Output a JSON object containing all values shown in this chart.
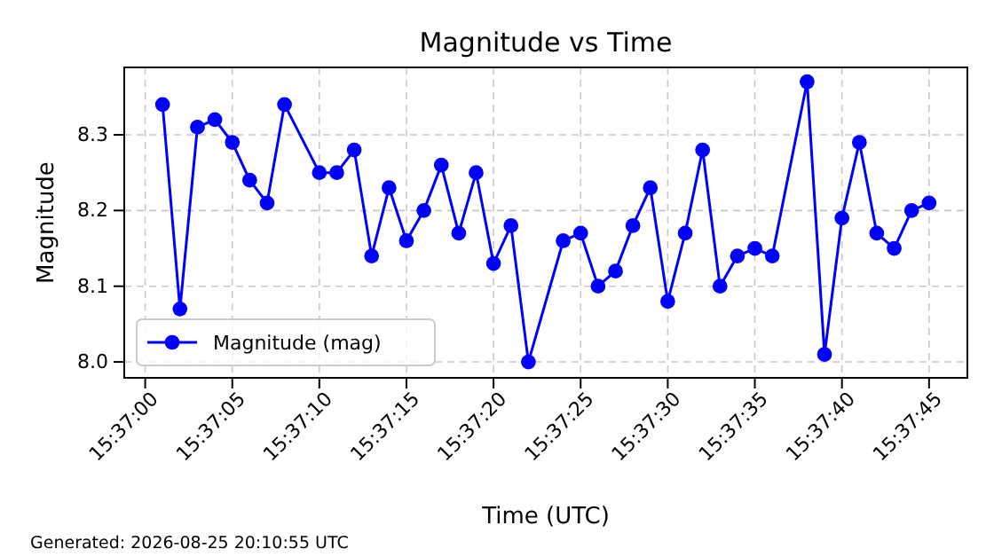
{
  "chart_data": {
    "type": "line",
    "title": "Magnitude vs Time",
    "xlabel": "Time (UTC)",
    "ylabel": "Magnitude",
    "x": [
      15.616944,
      15.617222,
      15.6175,
      15.617778,
      15.618056,
      15.618333,
      15.618611,
      15.618889,
      15.619444,
      15.619722,
      15.62,
      15.620278,
      15.620556,
      15.620833,
      15.621111,
      15.621389,
      15.621667,
      15.621944,
      15.622222,
      15.6225,
      15.622778,
      15.623333,
      15.623611,
      15.623889,
      15.624167,
      15.624444,
      15.624722,
      15.625,
      15.625278,
      15.625556,
      15.625833,
      15.626111,
      15.626389,
      15.626667,
      15.627222,
      15.6275,
      15.627778,
      15.628056,
      15.628333,
      15.628611,
      15.628889,
      15.629167
    ],
    "series": [
      {
        "name": "Magnitude (mag)",
        "color": "#0000ff",
        "values": [
          8.34,
          8.07,
          8.31,
          8.32,
          8.29,
          8.24,
          8.21,
          8.34,
          8.25,
          8.25,
          8.28,
          8.14,
          8.23,
          8.16,
          8.2,
          8.26,
          8.17,
          8.25,
          8.13,
          8.18,
          8.0,
          8.16,
          8.17,
          8.1,
          8.12,
          8.18,
          8.23,
          8.08,
          8.17,
          8.28,
          8.1,
          8.14,
          8.15,
          8.14,
          8.37,
          8.01,
          8.19,
          8.29,
          8.17,
          8.15,
          8.2,
          8.21
        ]
      }
    ],
    "xlim": [
      15.616333,
      15.629778
    ],
    "ylim": [
      7.979,
      8.389
    ],
    "xticks": [
      {
        "value": 15.616667,
        "label": "15:37:00"
      },
      {
        "value": 15.618056,
        "label": "15:37:05"
      },
      {
        "value": 15.619444,
        "label": "15:37:10"
      },
      {
        "value": 15.620833,
        "label": "15:37:15"
      },
      {
        "value": 15.622222,
        "label": "15:37:20"
      },
      {
        "value": 15.623611,
        "label": "15:37:25"
      },
      {
        "value": 15.625,
        "label": "15:37:30"
      },
      {
        "value": 15.626389,
        "label": "15:37:35"
      },
      {
        "value": 15.627778,
        "label": "15:37:40"
      },
      {
        "value": 15.629167,
        "label": "15:37:45"
      }
    ],
    "yticks": [
      {
        "value": 8.0,
        "label": "8.0"
      },
      {
        "value": 8.1,
        "label": "8.1"
      },
      {
        "value": 8.2,
        "label": "8.2"
      },
      {
        "value": 8.3,
        "label": "8.3"
      }
    ],
    "grid": true,
    "legend": "bottom left",
    "marker": "circle",
    "line_style": "solid",
    "annotations": [
      "Generated: 2026-08-25 20:10:55 UTC"
    ]
  }
}
